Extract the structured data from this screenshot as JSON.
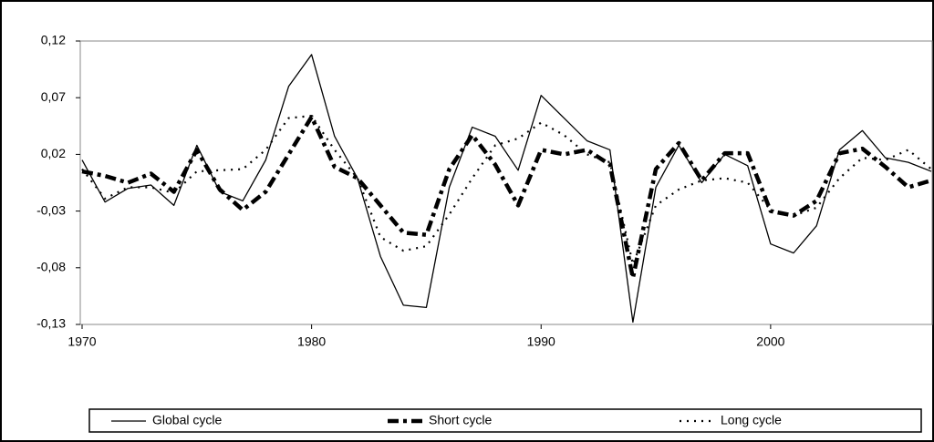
{
  "chart_data": {
    "type": "line",
    "x": [
      1970,
      1971,
      1972,
      1973,
      1974,
      1975,
      1976,
      1977,
      1978,
      1979,
      1980,
      1981,
      1982,
      1983,
      1984,
      1985,
      1986,
      1987,
      1988,
      1989,
      1990,
      1991,
      1992,
      1993,
      1994,
      1995,
      1996,
      1997,
      1998,
      1999,
      2000,
      2001,
      2002,
      2003,
      2004,
      2005,
      2006,
      2007
    ],
    "xlim": [
      1970,
      2007
    ],
    "xticks": [
      1970,
      1980,
      1990,
      2000
    ],
    "ylim": [
      -0.13,
      0.12
    ],
    "yticks": [
      {
        "value": -0.13,
        "label": "-0,13"
      },
      {
        "value": -0.08,
        "label": "-0,08"
      },
      {
        "value": -0.03,
        "label": "-0,03"
      },
      {
        "value": 0.02,
        "label": "0,02"
      },
      {
        "value": 0.07,
        "label": "0,07"
      },
      {
        "value": 0.12,
        "label": "0,12"
      }
    ],
    "legend": "bottom",
    "series": [
      {
        "name": "Global cycle",
        "color": "#000000",
        "values": [
          0.015,
          -0.022,
          -0.01,
          -0.007,
          -0.025,
          0.028,
          -0.013,
          -0.021,
          0.015,
          0.08,
          0.108,
          0.036,
          -0.001,
          -0.07,
          -0.113,
          -0.115,
          -0.009,
          0.044,
          0.036,
          0.006,
          0.072,
          0.052,
          0.032,
          0.024,
          -0.128,
          -0.009,
          0.028,
          -0.005,
          0.02,
          0.01,
          -0.059,
          -0.067,
          -0.043,
          0.024,
          0.041,
          0.017,
          0.013,
          0.005
        ]
      },
      {
        "name": "Short cycle",
        "color": "#000000",
        "values": [
          0.005,
          0.001,
          -0.005,
          0.003,
          -0.013,
          0.024,
          -0.011,
          -0.029,
          -0.013,
          0.02,
          0.053,
          0.009,
          -0.001,
          -0.025,
          -0.049,
          -0.051,
          0.007,
          0.037,
          0.011,
          -0.025,
          0.024,
          0.02,
          0.024,
          0.011,
          -0.089,
          0.007,
          0.03,
          -0.003,
          0.021,
          0.021,
          -0.03,
          -0.034,
          -0.021,
          0.021,
          0.025,
          0.009,
          -0.009,
          -0.003
        ]
      },
      {
        "name": "Long cycle",
        "color": "#000000",
        "values": [
          0.007,
          -0.019,
          -0.009,
          -0.009,
          -0.014,
          0.005,
          0.006,
          0.007,
          0.024,
          0.052,
          0.054,
          0.024,
          -0.001,
          -0.053,
          -0.065,
          -0.061,
          -0.033,
          -0.001,
          0.028,
          0.034,
          0.048,
          0.037,
          0.02,
          0.013,
          -0.077,
          -0.025,
          -0.011,
          -0.003,
          -0.001,
          -0.005,
          -0.029,
          -0.034,
          -0.027,
          -0.001,
          0.017,
          0.015,
          0.024,
          0.007
        ]
      }
    ]
  }
}
